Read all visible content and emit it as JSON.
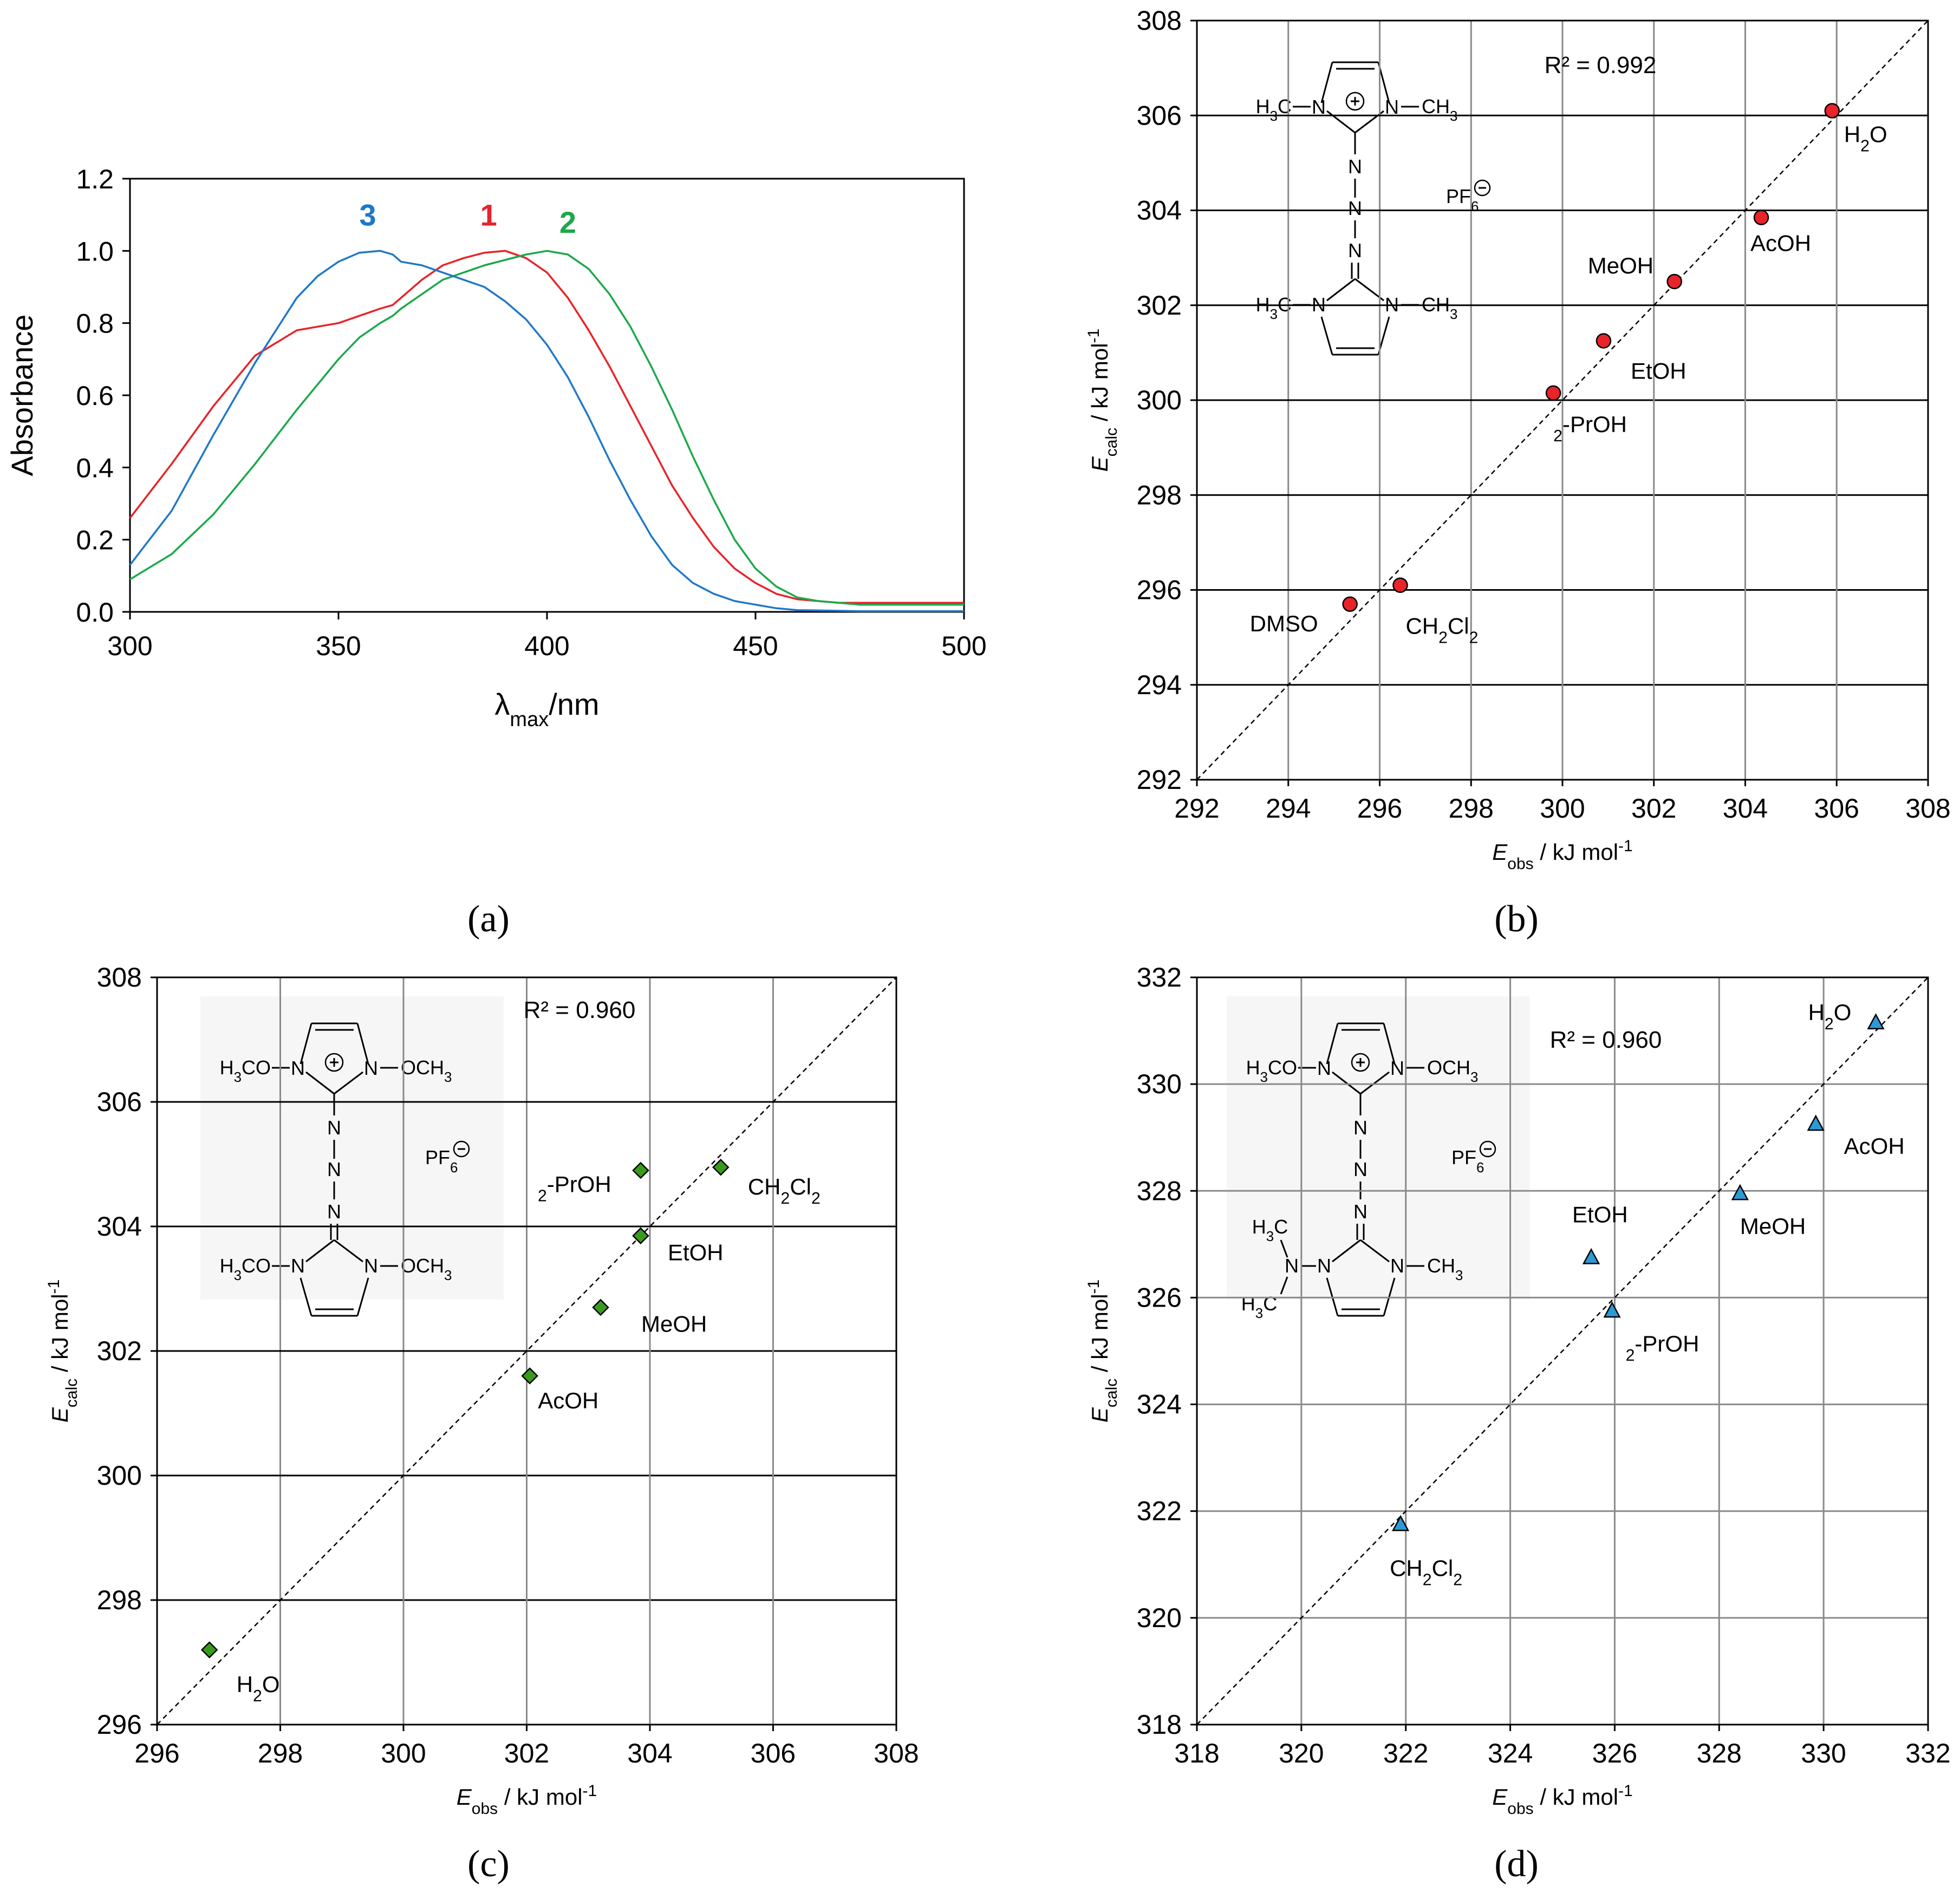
{
  "chart_data": [
    {
      "panel": "(a)",
      "type": "line",
      "xlabel": "λmax/nm",
      "xlabel_main": "λ",
      "xlabel_sub": "max",
      "xlabel_tail": "/nm",
      "ylabel": "Absorbance",
      "xlim": [
        300,
        500
      ],
      "ylim": [
        0,
        1.2
      ],
      "xticks": [
        "300",
        "350",
        "400",
        "450",
        "500"
      ],
      "yticks": [
        "0.0",
        "0.2",
        "0.4",
        "0.6",
        "0.8",
        "1.0",
        "1.2"
      ],
      "x": [
        300,
        310,
        320,
        330,
        340,
        345,
        350,
        355,
        360,
        363,
        365,
        370,
        375,
        380,
        385,
        390,
        395,
        400,
        405,
        410,
        415,
        420,
        425,
        430,
        435,
        440,
        445,
        450,
        455,
        460,
        465,
        470,
        475,
        480,
        490,
        500
      ],
      "series": [
        {
          "name": "1",
          "color": "#e8232a",
          "values": [
            0.26,
            0.41,
            0.57,
            0.71,
            0.78,
            0.79,
            0.8,
            0.82,
            0.84,
            0.85,
            0.87,
            0.92,
            0.96,
            0.98,
            0.995,
            1.0,
            0.98,
            0.94,
            0.87,
            0.78,
            0.68,
            0.57,
            0.46,
            0.35,
            0.26,
            0.18,
            0.12,
            0.08,
            0.05,
            0.035,
            0.03,
            0.025,
            0.025,
            0.025,
            0.025,
            0.025
          ]
        },
        {
          "name": "2",
          "color": "#1ba84a",
          "values": [
            0.09,
            0.16,
            0.27,
            0.41,
            0.56,
            0.63,
            0.7,
            0.76,
            0.8,
            0.82,
            0.84,
            0.88,
            0.92,
            0.94,
            0.96,
            0.975,
            0.99,
            1.0,
            0.99,
            0.95,
            0.88,
            0.79,
            0.68,
            0.56,
            0.43,
            0.31,
            0.2,
            0.12,
            0.07,
            0.04,
            0.03,
            0.025,
            0.02,
            0.02,
            0.02,
            0.02
          ]
        },
        {
          "name": "3",
          "color": "#1f78c8",
          "values": [
            0.13,
            0.28,
            0.49,
            0.69,
            0.87,
            0.93,
            0.97,
            0.995,
            1.0,
            0.99,
            0.97,
            0.96,
            0.94,
            0.92,
            0.9,
            0.86,
            0.81,
            0.74,
            0.65,
            0.54,
            0.42,
            0.31,
            0.21,
            0.13,
            0.08,
            0.05,
            0.03,
            0.02,
            0.01,
            0.005,
            0.004,
            0.003,
            0.002,
            0.002,
            0.002,
            0.002
          ]
        }
      ],
      "series_labels": [
        {
          "text": "3",
          "color": "#1f78c8",
          "x": 357,
          "y": 1.07
        },
        {
          "text": "1",
          "color": "#e8232a",
          "x": 386,
          "y": 1.07
        },
        {
          "text": "2",
          "color": "#1ba84a",
          "x": 405,
          "y": 1.05
        }
      ]
    },
    {
      "panel": "(b)",
      "type": "scatter",
      "xlabel": "Eobs / kJ mol-1",
      "ylabel": "Ecalc / kJ mol-1",
      "xlim": [
        292,
        308
      ],
      "ylim": [
        292,
        308
      ],
      "ticks": [
        "292",
        "294",
        "296",
        "298",
        "300",
        "302",
        "304",
        "306",
        "308"
      ],
      "r2": "R² = 0.992",
      "marker": "circle",
      "color": "#e8232a",
      "points": [
        {
          "label": "H2O",
          "x": 305.9,
          "y": 306.1
        },
        {
          "label": "AcOH",
          "x": 304.35,
          "y": 303.85
        },
        {
          "label": "MeOH",
          "x": 302.45,
          "y": 302.5
        },
        {
          "label": "EtOH",
          "x": 300.9,
          "y": 301.25
        },
        {
          "label": "2-PrOH",
          "x": 299.8,
          "y": 300.15
        },
        {
          "label": "CH2Cl2",
          "x": 296.45,
          "y": 296.1
        },
        {
          "label": "DMSO",
          "x": 295.35,
          "y": 295.7
        }
      ],
      "inset": {
        "top_left": "H3C",
        "top_right": "CH3",
        "bottom_left": "H3C",
        "bottom_right": "CH3",
        "anion": "PF6"
      }
    },
    {
      "panel": "(c)",
      "type": "scatter",
      "xlabel": "Eobs / kJ mol-1",
      "ylabel": "Ecalc / kJ mol-1",
      "xlim": [
        296,
        308
      ],
      "ylim": [
        296,
        308
      ],
      "ticks": [
        "296",
        "298",
        "300",
        "302",
        "304",
        "306",
        "308"
      ],
      "r2": "R² = 0.960",
      "marker": "diamond",
      "color": "#3a9a1e",
      "points": [
        {
          "label": "CH2Cl2",
          "x": 305.15,
          "y": 304.95
        },
        {
          "label": "2-PrOH",
          "x": 303.85,
          "y": 304.9
        },
        {
          "label": "EtOH",
          "x": 303.85,
          "y": 303.85
        },
        {
          "label": "MeOH",
          "x": 303.2,
          "y": 302.7
        },
        {
          "label": "AcOH",
          "x": 302.05,
          "y": 301.6
        },
        {
          "label": "H2O",
          "x": 296.85,
          "y": 297.2
        }
      ],
      "inset": {
        "top_left": "H3CO",
        "top_right": "OCH3",
        "bottom_left": "H3CO",
        "bottom_right": "OCH3",
        "anion": "PF6"
      }
    },
    {
      "panel": "(d)",
      "type": "scatter",
      "xlabel": "Eobs / kJ mol-1",
      "ylabel": "Ecalc / kJ mol-1",
      "xlim": [
        318,
        332
      ],
      "ylim": [
        318,
        332
      ],
      "ticks": [
        "318",
        "320",
        "322",
        "324",
        "326",
        "328",
        "330",
        "332"
      ],
      "r2": "R² = 0.960",
      "marker": "triangle",
      "color": "#2c9ad6",
      "points": [
        {
          "label": "H2O",
          "x": 331.0,
          "y": 331.15
        },
        {
          "label": "AcOH",
          "x": 329.85,
          "y": 329.25
        },
        {
          "label": "MeOH",
          "x": 328.4,
          "y": 327.95
        },
        {
          "label": "EtOH",
          "x": 325.55,
          "y": 326.75
        },
        {
          "label": "2-PrOH",
          "x": 325.95,
          "y": 325.75
        },
        {
          "label": "CH2Cl2",
          "x": 321.9,
          "y": 321.75
        }
      ],
      "inset": {
        "top_left": "H3CO",
        "top_right": "OCH3",
        "bottom_left": "H3C",
        "bottom_left2": "H3C",
        "bottom_right": "CH3",
        "anion": "PF6"
      }
    }
  ]
}
